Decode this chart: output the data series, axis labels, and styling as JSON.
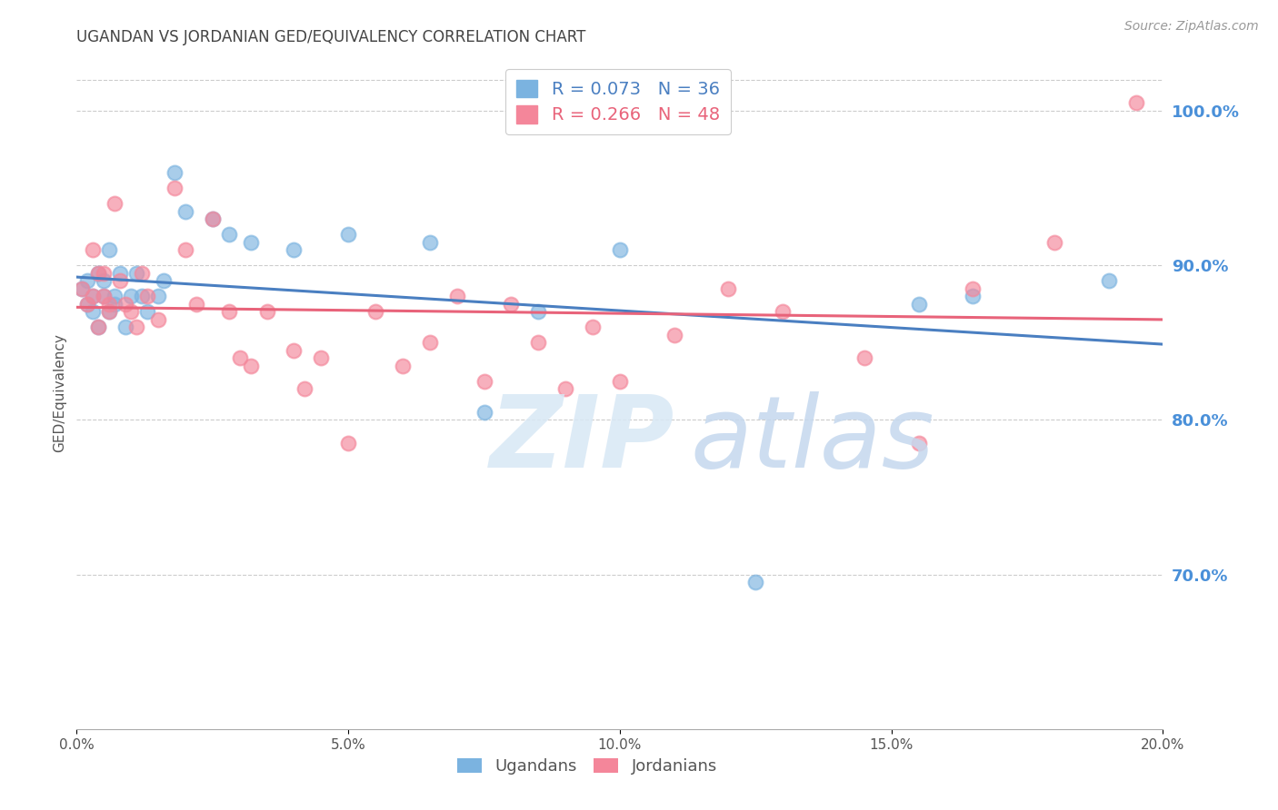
{
  "title": "UGANDAN VS JORDANIAN GED/EQUIVALENCY CORRELATION CHART",
  "source": "Source: ZipAtlas.com",
  "ylabel": "GED/Equivalency",
  "xlim": [
    0.0,
    0.2
  ],
  "ylim": [
    0.6,
    1.035
  ],
  "xtick_labels": [
    "0.0%",
    "5.0%",
    "10.0%",
    "15.0%",
    "20.0%"
  ],
  "xtick_vals": [
    0.0,
    0.05,
    0.1,
    0.15,
    0.2
  ],
  "ytick_right_labels": [
    "70.0%",
    "80.0%",
    "90.0%",
    "100.0%"
  ],
  "ytick_right_vals": [
    0.7,
    0.8,
    0.9,
    1.0
  ],
  "ugandan_color": "#7BB3E0",
  "jordanian_color": "#F4869A",
  "ugandan_line_color": "#4A7FC1",
  "jordanian_line_color": "#E8637A",
  "ugandan_R": 0.073,
  "ugandan_N": 36,
  "jordanian_R": 0.266,
  "jordanian_N": 48,
  "background_color": "#ffffff",
  "grid_color": "#cccccc",
  "right_axis_color": "#4A90D9",
  "title_color": "#444444",
  "ugandan_x": [
    0.001,
    0.002,
    0.002,
    0.003,
    0.003,
    0.004,
    0.004,
    0.005,
    0.005,
    0.006,
    0.006,
    0.007,
    0.007,
    0.008,
    0.009,
    0.01,
    0.011,
    0.012,
    0.013,
    0.015,
    0.016,
    0.018,
    0.02,
    0.025,
    0.028,
    0.032,
    0.04,
    0.05,
    0.065,
    0.075,
    0.085,
    0.1,
    0.125,
    0.155,
    0.165,
    0.19
  ],
  "ugandan_y": [
    0.885,
    0.89,
    0.875,
    0.88,
    0.87,
    0.895,
    0.86,
    0.89,
    0.88,
    0.91,
    0.87,
    0.88,
    0.875,
    0.895,
    0.86,
    0.88,
    0.895,
    0.88,
    0.87,
    0.88,
    0.89,
    0.96,
    0.935,
    0.93,
    0.92,
    0.915,
    0.91,
    0.92,
    0.915,
    0.805,
    0.87,
    0.91,
    0.695,
    0.875,
    0.88,
    0.89
  ],
  "jordanian_x": [
    0.001,
    0.002,
    0.003,
    0.003,
    0.004,
    0.004,
    0.005,
    0.005,
    0.006,
    0.006,
    0.007,
    0.008,
    0.009,
    0.01,
    0.011,
    0.012,
    0.013,
    0.015,
    0.018,
    0.02,
    0.022,
    0.025,
    0.028,
    0.03,
    0.032,
    0.035,
    0.04,
    0.042,
    0.045,
    0.05,
    0.055,
    0.06,
    0.065,
    0.07,
    0.075,
    0.08,
    0.085,
    0.09,
    0.095,
    0.1,
    0.11,
    0.12,
    0.13,
    0.145,
    0.155,
    0.165,
    0.18,
    0.195
  ],
  "jordanian_y": [
    0.885,
    0.875,
    0.91,
    0.88,
    0.895,
    0.86,
    0.88,
    0.895,
    0.875,
    0.87,
    0.94,
    0.89,
    0.875,
    0.87,
    0.86,
    0.895,
    0.88,
    0.865,
    0.95,
    0.91,
    0.875,
    0.93,
    0.87,
    0.84,
    0.835,
    0.87,
    0.845,
    0.82,
    0.84,
    0.785,
    0.87,
    0.835,
    0.85,
    0.88,
    0.825,
    0.875,
    0.85,
    0.82,
    0.86,
    0.825,
    0.855,
    0.885,
    0.87,
    0.84,
    0.785,
    0.885,
    0.915,
    1.005
  ]
}
